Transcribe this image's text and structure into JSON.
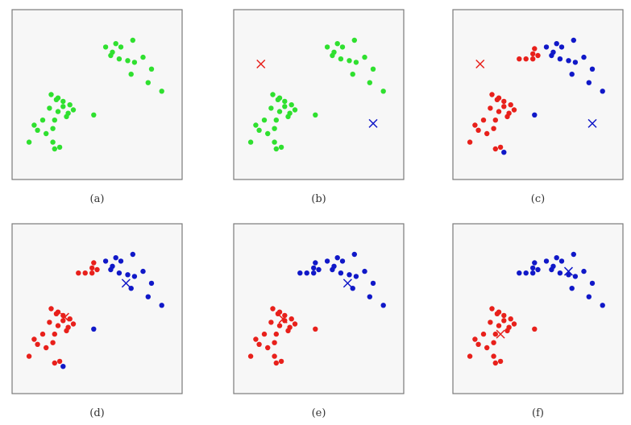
{
  "colors": {
    "unassigned": "#2fe02f",
    "cluster_red": "#e8201b",
    "cluster_blue": "#1018c8",
    "panel_bg": "#f7f7f7",
    "panel_border": "#7a7a7a"
  },
  "panels": [
    {
      "caption": "(a)",
      "points": [
        [
          0.55,
          0.78,
          "g"
        ],
        [
          0.59,
          0.75,
          "g"
        ],
        [
          0.64,
          0.78,
          "g"
        ],
        [
          0.71,
          0.82,
          "g"
        ],
        [
          0.58,
          0.73,
          "g"
        ],
        [
          0.61,
          0.8,
          "g"
        ],
        [
          0.63,
          0.71,
          "g"
        ],
        [
          0.68,
          0.7,
          "g"
        ],
        [
          0.72,
          0.69,
          "g"
        ],
        [
          0.77,
          0.72,
          "g"
        ],
        [
          0.82,
          0.65,
          "g"
        ],
        [
          0.7,
          0.62,
          "g"
        ],
        [
          0.8,
          0.57,
          "g"
        ],
        [
          0.88,
          0.52,
          "g"
        ],
        [
          0.1,
          0.22,
          "g"
        ],
        [
          0.2,
          0.27,
          "g"
        ],
        [
          0.24,
          0.3,
          "g"
        ],
        [
          0.18,
          0.35,
          "g"
        ],
        [
          0.25,
          0.35,
          "g"
        ],
        [
          0.22,
          0.42,
          "g"
        ],
        [
          0.27,
          0.4,
          "g"
        ],
        [
          0.32,
          0.37,
          "g"
        ],
        [
          0.34,
          0.44,
          "g"
        ],
        [
          0.36,
          0.41,
          "g"
        ],
        [
          0.3,
          0.46,
          "g"
        ],
        [
          0.26,
          0.47,
          "g"
        ],
        [
          0.23,
          0.5,
          "g"
        ],
        [
          0.15,
          0.29,
          "g"
        ],
        [
          0.13,
          0.32,
          "g"
        ],
        [
          0.33,
          0.39,
          "g"
        ],
        [
          0.27,
          0.48,
          "g"
        ],
        [
          0.3,
          0.43,
          "g"
        ],
        [
          0.48,
          0.38,
          "g"
        ],
        [
          0.25,
          0.18,
          "g"
        ],
        [
          0.28,
          0.19,
          "g"
        ],
        [
          0.24,
          0.22,
          "g"
        ]
      ],
      "centroids": []
    },
    {
      "caption": "(b)",
      "points": [
        [
          0.55,
          0.78,
          "g"
        ],
        [
          0.59,
          0.75,
          "g"
        ],
        [
          0.64,
          0.78,
          "g"
        ],
        [
          0.71,
          0.82,
          "g"
        ],
        [
          0.58,
          0.73,
          "g"
        ],
        [
          0.61,
          0.8,
          "g"
        ],
        [
          0.63,
          0.71,
          "g"
        ],
        [
          0.68,
          0.7,
          "g"
        ],
        [
          0.72,
          0.69,
          "g"
        ],
        [
          0.77,
          0.72,
          "g"
        ],
        [
          0.82,
          0.65,
          "g"
        ],
        [
          0.7,
          0.62,
          "g"
        ],
        [
          0.8,
          0.57,
          "g"
        ],
        [
          0.88,
          0.52,
          "g"
        ],
        [
          0.1,
          0.22,
          "g"
        ],
        [
          0.2,
          0.27,
          "g"
        ],
        [
          0.24,
          0.3,
          "g"
        ],
        [
          0.18,
          0.35,
          "g"
        ],
        [
          0.25,
          0.35,
          "g"
        ],
        [
          0.22,
          0.42,
          "g"
        ],
        [
          0.27,
          0.4,
          "g"
        ],
        [
          0.32,
          0.37,
          "g"
        ],
        [
          0.34,
          0.44,
          "g"
        ],
        [
          0.36,
          0.41,
          "g"
        ],
        [
          0.3,
          0.46,
          "g"
        ],
        [
          0.26,
          0.47,
          "g"
        ],
        [
          0.23,
          0.5,
          "g"
        ],
        [
          0.15,
          0.29,
          "g"
        ],
        [
          0.13,
          0.32,
          "g"
        ],
        [
          0.33,
          0.39,
          "g"
        ],
        [
          0.27,
          0.48,
          "g"
        ],
        [
          0.3,
          0.43,
          "g"
        ],
        [
          0.48,
          0.38,
          "g"
        ],
        [
          0.25,
          0.18,
          "g"
        ],
        [
          0.28,
          0.19,
          "g"
        ],
        [
          0.24,
          0.22,
          "g"
        ]
      ],
      "centroids": [
        [
          0.16,
          0.68,
          "r"
        ],
        [
          0.82,
          0.33,
          "b"
        ]
      ]
    },
    {
      "caption": "(c)",
      "points": [
        [
          0.55,
          0.78,
          "b"
        ],
        [
          0.59,
          0.75,
          "b"
        ],
        [
          0.64,
          0.78,
          "b"
        ],
        [
          0.71,
          0.82,
          "b"
        ],
        [
          0.58,
          0.73,
          "b"
        ],
        [
          0.61,
          0.8,
          "b"
        ],
        [
          0.63,
          0.71,
          "b"
        ],
        [
          0.68,
          0.7,
          "b"
        ],
        [
          0.72,
          0.69,
          "b"
        ],
        [
          0.77,
          0.72,
          "b"
        ],
        [
          0.82,
          0.65,
          "b"
        ],
        [
          0.7,
          0.62,
          "b"
        ],
        [
          0.8,
          0.57,
          "b"
        ],
        [
          0.88,
          0.52,
          "b"
        ],
        [
          0.48,
          0.38,
          "b"
        ],
        [
          0.3,
          0.16,
          "b"
        ],
        [
          0.48,
          0.77,
          "r"
        ],
        [
          0.47,
          0.74,
          "r"
        ],
        [
          0.5,
          0.73,
          "r"
        ],
        [
          0.47,
          0.71,
          "r"
        ],
        [
          0.43,
          0.71,
          "r"
        ],
        [
          0.39,
          0.71,
          "r"
        ],
        [
          0.1,
          0.22,
          "r"
        ],
        [
          0.2,
          0.27,
          "r"
        ],
        [
          0.24,
          0.3,
          "r"
        ],
        [
          0.18,
          0.35,
          "r"
        ],
        [
          0.25,
          0.35,
          "r"
        ],
        [
          0.22,
          0.42,
          "r"
        ],
        [
          0.27,
          0.4,
          "r"
        ],
        [
          0.32,
          0.37,
          "r"
        ],
        [
          0.34,
          0.44,
          "r"
        ],
        [
          0.36,
          0.41,
          "r"
        ],
        [
          0.3,
          0.46,
          "r"
        ],
        [
          0.26,
          0.47,
          "r"
        ],
        [
          0.23,
          0.5,
          "r"
        ],
        [
          0.15,
          0.29,
          "r"
        ],
        [
          0.13,
          0.32,
          "r"
        ],
        [
          0.33,
          0.39,
          "r"
        ],
        [
          0.27,
          0.48,
          "r"
        ],
        [
          0.3,
          0.43,
          "r"
        ],
        [
          0.25,
          0.18,
          "r"
        ],
        [
          0.28,
          0.19,
          "r"
        ]
      ],
      "centroids": [
        [
          0.16,
          0.68,
          "r"
        ],
        [
          0.82,
          0.33,
          "b"
        ]
      ]
    },
    {
      "caption": "(d)",
      "points": [
        [
          0.55,
          0.78,
          "b"
        ],
        [
          0.59,
          0.75,
          "b"
        ],
        [
          0.64,
          0.78,
          "b"
        ],
        [
          0.71,
          0.82,
          "b"
        ],
        [
          0.58,
          0.73,
          "b"
        ],
        [
          0.61,
          0.8,
          "b"
        ],
        [
          0.63,
          0.71,
          "b"
        ],
        [
          0.68,
          0.7,
          "b"
        ],
        [
          0.72,
          0.69,
          "b"
        ],
        [
          0.77,
          0.72,
          "b"
        ],
        [
          0.82,
          0.65,
          "b"
        ],
        [
          0.7,
          0.62,
          "b"
        ],
        [
          0.8,
          0.57,
          "b"
        ],
        [
          0.88,
          0.52,
          "b"
        ],
        [
          0.48,
          0.38,
          "b"
        ],
        [
          0.3,
          0.16,
          "b"
        ],
        [
          0.48,
          0.77,
          "r"
        ],
        [
          0.47,
          0.74,
          "r"
        ],
        [
          0.5,
          0.73,
          "r"
        ],
        [
          0.47,
          0.71,
          "r"
        ],
        [
          0.43,
          0.71,
          "r"
        ],
        [
          0.39,
          0.71,
          "r"
        ],
        [
          0.1,
          0.22,
          "r"
        ],
        [
          0.2,
          0.27,
          "r"
        ],
        [
          0.24,
          0.3,
          "r"
        ],
        [
          0.18,
          0.35,
          "r"
        ],
        [
          0.25,
          0.35,
          "r"
        ],
        [
          0.22,
          0.42,
          "r"
        ],
        [
          0.27,
          0.4,
          "r"
        ],
        [
          0.32,
          0.37,
          "r"
        ],
        [
          0.34,
          0.44,
          "r"
        ],
        [
          0.36,
          0.41,
          "r"
        ],
        [
          0.3,
          0.46,
          "r"
        ],
        [
          0.26,
          0.47,
          "r"
        ],
        [
          0.23,
          0.5,
          "r"
        ],
        [
          0.15,
          0.29,
          "r"
        ],
        [
          0.13,
          0.32,
          "r"
        ],
        [
          0.33,
          0.39,
          "r"
        ],
        [
          0.27,
          0.48,
          "r"
        ],
        [
          0.3,
          0.43,
          "r"
        ],
        [
          0.25,
          0.18,
          "r"
        ],
        [
          0.28,
          0.19,
          "r"
        ]
      ],
      "centroids": [
        [
          0.31,
          0.45,
          "r"
        ],
        [
          0.67,
          0.65,
          "b"
        ]
      ]
    },
    {
      "caption": "(e)",
      "points": [
        [
          0.55,
          0.78,
          "b"
        ],
        [
          0.59,
          0.75,
          "b"
        ],
        [
          0.64,
          0.78,
          "b"
        ],
        [
          0.71,
          0.82,
          "b"
        ],
        [
          0.58,
          0.73,
          "b"
        ],
        [
          0.61,
          0.8,
          "b"
        ],
        [
          0.63,
          0.71,
          "b"
        ],
        [
          0.68,
          0.7,
          "b"
        ],
        [
          0.72,
          0.69,
          "b"
        ],
        [
          0.77,
          0.72,
          "b"
        ],
        [
          0.82,
          0.65,
          "b"
        ],
        [
          0.7,
          0.62,
          "b"
        ],
        [
          0.8,
          0.57,
          "b"
        ],
        [
          0.88,
          0.52,
          "b"
        ],
        [
          0.48,
          0.77,
          "b"
        ],
        [
          0.47,
          0.74,
          "b"
        ],
        [
          0.5,
          0.73,
          "b"
        ],
        [
          0.47,
          0.71,
          "b"
        ],
        [
          0.43,
          0.71,
          "b"
        ],
        [
          0.39,
          0.71,
          "b"
        ],
        [
          0.1,
          0.22,
          "r"
        ],
        [
          0.2,
          0.27,
          "r"
        ],
        [
          0.24,
          0.3,
          "r"
        ],
        [
          0.18,
          0.35,
          "r"
        ],
        [
          0.25,
          0.35,
          "r"
        ],
        [
          0.22,
          0.42,
          "r"
        ],
        [
          0.27,
          0.4,
          "r"
        ],
        [
          0.32,
          0.37,
          "r"
        ],
        [
          0.34,
          0.44,
          "r"
        ],
        [
          0.36,
          0.41,
          "r"
        ],
        [
          0.3,
          0.46,
          "r"
        ],
        [
          0.26,
          0.47,
          "r"
        ],
        [
          0.23,
          0.5,
          "r"
        ],
        [
          0.15,
          0.29,
          "r"
        ],
        [
          0.13,
          0.32,
          "r"
        ],
        [
          0.33,
          0.39,
          "r"
        ],
        [
          0.27,
          0.48,
          "r"
        ],
        [
          0.3,
          0.43,
          "r"
        ],
        [
          0.48,
          0.38,
          "r"
        ],
        [
          0.25,
          0.18,
          "r"
        ],
        [
          0.28,
          0.19,
          "r"
        ],
        [
          0.24,
          0.22,
          "r"
        ]
      ],
      "centroids": [
        [
          0.29,
          0.44,
          "r"
        ],
        [
          0.67,
          0.65,
          "b"
        ]
      ]
    },
    {
      "caption": "(f)",
      "points": [
        [
          0.55,
          0.78,
          "b"
        ],
        [
          0.59,
          0.75,
          "b"
        ],
        [
          0.64,
          0.78,
          "b"
        ],
        [
          0.71,
          0.82,
          "b"
        ],
        [
          0.58,
          0.73,
          "b"
        ],
        [
          0.61,
          0.8,
          "b"
        ],
        [
          0.63,
          0.71,
          "b"
        ],
        [
          0.68,
          0.7,
          "b"
        ],
        [
          0.72,
          0.69,
          "b"
        ],
        [
          0.77,
          0.72,
          "b"
        ],
        [
          0.82,
          0.65,
          "b"
        ],
        [
          0.7,
          0.62,
          "b"
        ],
        [
          0.8,
          0.57,
          "b"
        ],
        [
          0.88,
          0.52,
          "b"
        ],
        [
          0.48,
          0.77,
          "b"
        ],
        [
          0.47,
          0.74,
          "b"
        ],
        [
          0.5,
          0.73,
          "b"
        ],
        [
          0.47,
          0.71,
          "b"
        ],
        [
          0.43,
          0.71,
          "b"
        ],
        [
          0.39,
          0.71,
          "b"
        ],
        [
          0.1,
          0.22,
          "r"
        ],
        [
          0.2,
          0.27,
          "r"
        ],
        [
          0.24,
          0.3,
          "r"
        ],
        [
          0.18,
          0.35,
          "r"
        ],
        [
          0.25,
          0.35,
          "r"
        ],
        [
          0.22,
          0.42,
          "r"
        ],
        [
          0.27,
          0.4,
          "r"
        ],
        [
          0.32,
          0.37,
          "r"
        ],
        [
          0.34,
          0.44,
          "r"
        ],
        [
          0.36,
          0.41,
          "r"
        ],
        [
          0.3,
          0.46,
          "r"
        ],
        [
          0.26,
          0.47,
          "r"
        ],
        [
          0.23,
          0.5,
          "r"
        ],
        [
          0.15,
          0.29,
          "r"
        ],
        [
          0.13,
          0.32,
          "r"
        ],
        [
          0.33,
          0.39,
          "r"
        ],
        [
          0.27,
          0.48,
          "r"
        ],
        [
          0.3,
          0.43,
          "r"
        ],
        [
          0.48,
          0.38,
          "r"
        ],
        [
          0.25,
          0.18,
          "r"
        ],
        [
          0.28,
          0.19,
          "r"
        ],
        [
          0.24,
          0.22,
          "r"
        ]
      ],
      "centroids": [
        [
          0.28,
          0.35,
          "r"
        ],
        [
          0.68,
          0.72,
          "b"
        ]
      ]
    }
  ]
}
